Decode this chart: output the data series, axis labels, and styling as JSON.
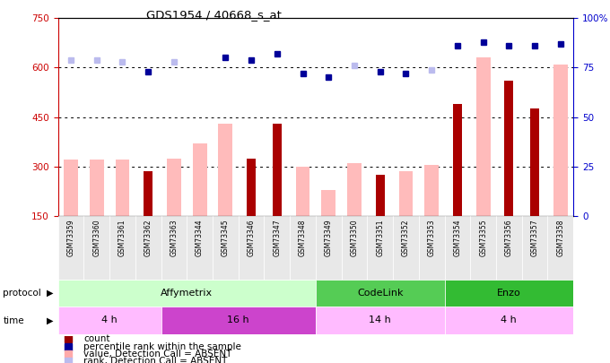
{
  "title": "GDS1954 / 40668_s_at",
  "samples": [
    "GSM73359",
    "GSM73360",
    "GSM73361",
    "GSM73362",
    "GSM73363",
    "GSM73344",
    "GSM73345",
    "GSM73346",
    "GSM73347",
    "GSM73348",
    "GSM73349",
    "GSM73350",
    "GSM73351",
    "GSM73352",
    "GSM73353",
    "GSM73354",
    "GSM73355",
    "GSM73356",
    "GSM73357",
    "GSM73358"
  ],
  "count_values": [
    null,
    null,
    null,
    285,
    null,
    null,
    null,
    325,
    430,
    null,
    null,
    null,
    275,
    null,
    null,
    490,
    null,
    560,
    475,
    null
  ],
  "value_absent": [
    320,
    320,
    320,
    null,
    325,
    370,
    430,
    null,
    null,
    300,
    230,
    310,
    null,
    285,
    305,
    null,
    630,
    null,
    null,
    610
  ],
  "rank_present_pct": [
    null,
    null,
    null,
    73,
    null,
    null,
    80,
    79,
    82,
    72,
    70,
    null,
    73,
    72,
    null,
    86,
    88,
    86,
    86,
    87
  ],
  "rank_absent_pct": [
    79,
    79,
    78,
    null,
    78,
    null,
    null,
    null,
    null,
    null,
    null,
    76,
    null,
    null,
    74,
    null,
    null,
    null,
    null,
    null
  ],
  "ylim_left": [
    150,
    750
  ],
  "ylim_right": [
    0,
    100
  ],
  "yticks_left": [
    150,
    300,
    450,
    600,
    750
  ],
  "yticks_right": [
    0,
    25,
    50,
    75,
    100
  ],
  "protocol_groups": [
    {
      "label": "Affymetrix",
      "start": 0,
      "end": 9,
      "color": "#ccffcc"
    },
    {
      "label": "CodeLink",
      "start": 10,
      "end": 14,
      "color": "#55cc55"
    },
    {
      "label": "Enzo",
      "start": 15,
      "end": 19,
      "color": "#33bb33"
    }
  ],
  "time_groups": [
    {
      "label": "4 h",
      "start": 0,
      "end": 3,
      "color": "#ffbbff"
    },
    {
      "label": "16 h",
      "start": 4,
      "end": 9,
      "color": "#cc44cc"
    },
    {
      "label": "14 h",
      "start": 10,
      "end": 14,
      "color": "#ffbbff"
    },
    {
      "label": "4 h",
      "start": 15,
      "end": 19,
      "color": "#ffbbff"
    }
  ],
  "legend_items": [
    {
      "color": "#990000",
      "label": "count"
    },
    {
      "color": "#000099",
      "label": "percentile rank within the sample"
    },
    {
      "color": "#ffaaaa",
      "label": "value, Detection Call = ABSENT"
    },
    {
      "color": "#bbbbee",
      "label": "rank, Detection Call = ABSENT"
    }
  ],
  "bg_color": "#ffffff",
  "left_axis_color": "#cc0000",
  "right_axis_color": "#0000cc",
  "bar_color_count": "#aa0000",
  "bar_color_absent": "#ffbbbb"
}
